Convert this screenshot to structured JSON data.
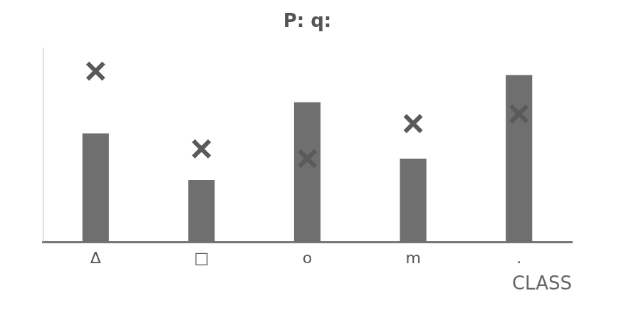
{
  "chart_data": {
    "type": "bar",
    "title": "P: q:",
    "categories": [
      "Δ",
      "□",
      "o",
      "m",
      "."
    ],
    "x_label": "CLASS",
    "series": [
      {
        "type": "bar",
        "color": "#6f6f6f",
        "values": [
          56,
          32,
          72,
          43,
          86
        ]
      },
      {
        "type": "scatter",
        "marker": "x",
        "color": "#5a5a5a",
        "values": [
          88,
          48,
          43,
          61,
          66
        ]
      }
    ],
    "ylim": [
      0,
      100
    ],
    "grid": false,
    "tick_labels": "x"
  }
}
